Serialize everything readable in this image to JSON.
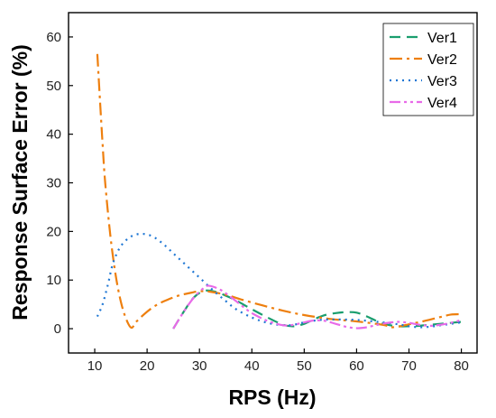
{
  "chart_data": {
    "type": "line",
    "xlabel": "RPS (Hz)",
    "ylabel": "Response Surface Error (%)",
    "xlim": [
      5,
      83
    ],
    "ylim": [
      -5,
      65
    ],
    "xticks": [
      10,
      20,
      30,
      40,
      50,
      60,
      70,
      80
    ],
    "yticks": [
      0,
      10,
      20,
      30,
      40,
      50,
      60
    ],
    "legend_position": "top-right",
    "series": [
      {
        "name": "Ver1",
        "color": "#1a9e6e",
        "dash": "12,7",
        "x": [
          25,
          27,
          29,
          31,
          33,
          35,
          37,
          40,
          43,
          46,
          48,
          50,
          52,
          54,
          56,
          58,
          60,
          62,
          64,
          66,
          68,
          70,
          72,
          74,
          76,
          78,
          80
        ],
        "y": [
          0,
          3.5,
          6.5,
          7.8,
          7.6,
          6.8,
          5.8,
          4.0,
          2.3,
          0.8,
          0.5,
          1.0,
          2.0,
          2.8,
          3.2,
          3.4,
          3.3,
          2.5,
          1.5,
          0.8,
          0.5,
          0.5,
          0.6,
          0.8,
          1.0,
          1.2,
          1.4
        ]
      },
      {
        "name": "Ver2",
        "color": "#ee7f0e",
        "dash": "14,5,3,5",
        "x": [
          10.5,
          11,
          11.5,
          12,
          13,
          14,
          15,
          16,
          17,
          18,
          20,
          22,
          24,
          26,
          28,
          30,
          32,
          35,
          38,
          42,
          46,
          50,
          55,
          60,
          65,
          67,
          70,
          73,
          76,
          78,
          80
        ],
        "y": [
          56.5,
          47,
          38,
          30,
          19,
          11,
          5.5,
          2.0,
          0.2,
          1.5,
          3.5,
          5.0,
          6.0,
          6.8,
          7.3,
          7.7,
          7.6,
          7.0,
          6.0,
          4.8,
          3.7,
          2.8,
          2.0,
          1.5,
          0.8,
          0.3,
          0.9,
          1.6,
          2.4,
          2.9,
          3.0
        ]
      },
      {
        "name": "Ver3",
        "color": "#1f77d4",
        "dash": "2,5",
        "x": [
          10.5,
          11.5,
          12.5,
          13.5,
          15,
          17,
          19,
          21,
          23,
          25,
          27,
          29,
          31,
          33,
          35,
          37,
          40,
          43,
          46,
          48,
          50,
          53,
          56,
          60,
          64,
          68,
          70,
          72,
          74,
          76,
          78,
          80
        ],
        "y": [
          2.5,
          5.0,
          9.0,
          13.5,
          17.0,
          19.0,
          19.5,
          19.0,
          17.5,
          15.5,
          13.5,
          11.5,
          9.5,
          7.5,
          5.7,
          4.0,
          2.3,
          1.2,
          0.7,
          0.8,
          1.3,
          1.8,
          1.9,
          1.8,
          1.4,
          0.9,
          0.5,
          0.3,
          0.4,
          0.7,
          1.0,
          1.3
        ]
      },
      {
        "name": "Ver4",
        "color": "#e86ae8",
        "dash": "12,4,3,4,3,4",
        "x": [
          25,
          27,
          29,
          31,
          32,
          34,
          36,
          38,
          40,
          43,
          46,
          48,
          50,
          52,
          54,
          56,
          58,
          60,
          62,
          64,
          66,
          68,
          70,
          72,
          74,
          76,
          78,
          80
        ],
        "y": [
          0,
          3.5,
          6.5,
          8.5,
          8.8,
          8.0,
          6.5,
          4.8,
          3.2,
          1.6,
          0.7,
          0.8,
          1.3,
          1.7,
          1.6,
          1.0,
          0.4,
          0.1,
          0.3,
          0.8,
          1.2,
          1.4,
          1.2,
          0.8,
          0.6,
          0.8,
          1.2,
          1.8
        ]
      }
    ]
  }
}
